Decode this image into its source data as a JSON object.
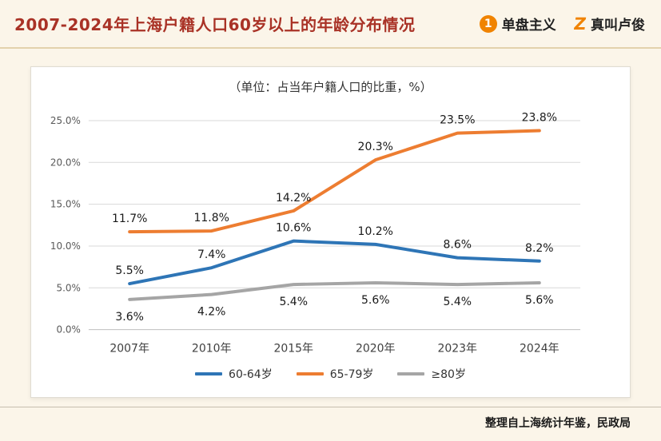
{
  "header": {
    "title": "2007-2024年上海户籍人口60岁以上的年龄分布情况",
    "logos": [
      {
        "icon": "1",
        "label": "单盘主义"
      },
      {
        "icon": "Z",
        "label": "真叫卢俊"
      }
    ]
  },
  "chart_data": {
    "type": "line",
    "title": "（单位：占当年户籍人口的比重，%）",
    "categories": [
      "2007年",
      "2010年",
      "2015年",
      "2020年",
      "2023年",
      "2024年"
    ],
    "series": [
      {
        "name": "60-64岁",
        "color": "#2E75B6",
        "values": [
          5.5,
          7.4,
          10.6,
          10.2,
          8.6,
          8.2
        ],
        "label_position": "above"
      },
      {
        "name": "65-79岁",
        "color": "#ED7D31",
        "values": [
          11.7,
          11.8,
          14.2,
          20.3,
          23.5,
          23.8
        ],
        "label_position": "above"
      },
      {
        "name": "≥80岁",
        "color": "#A5A5A5",
        "values": [
          3.6,
          4.2,
          5.4,
          5.6,
          5.4,
          5.6
        ],
        "label_position": "below"
      }
    ],
    "ylim": [
      0,
      25
    ],
    "yticks": [
      "0.0%",
      "5.0%",
      "10.0%",
      "15.0%",
      "20.0%",
      "25.0%"
    ],
    "grid": "horizontal",
    "legend_position": "bottom"
  },
  "footer": {
    "source": "整理自上海统计年鉴，民政局"
  },
  "colors": {
    "title_red": "#A93226",
    "brand_orange": "#F08300",
    "page_bg": "#FBF5E9",
    "card_bg": "#FFFFFF",
    "gridline": "#D9D9D9"
  }
}
